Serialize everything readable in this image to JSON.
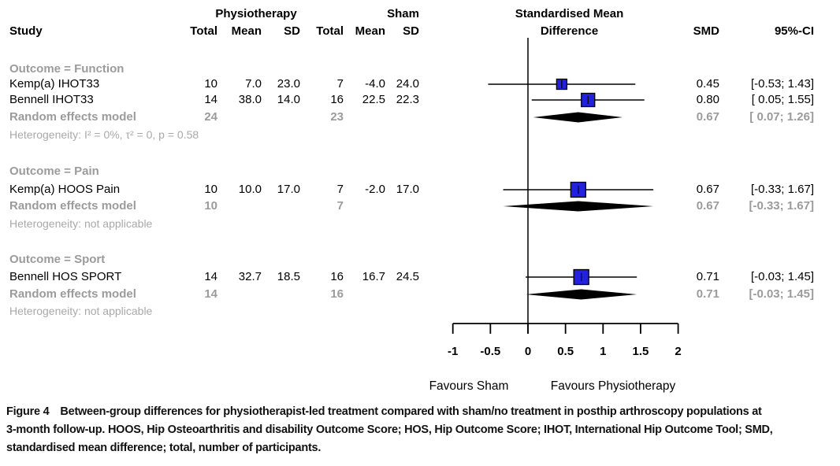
{
  "header": {
    "study": "Study",
    "group1": "Physiotherapy",
    "group2": "Sham",
    "col_total": "Total",
    "col_mean": "Mean",
    "col_sd": "SD",
    "plot_title_1": "Standardised Mean",
    "plot_title_2": "Difference",
    "smd": "SMD",
    "ci": "95%-CI"
  },
  "colors": {
    "square_blue": "#2121DF",
    "summary_black": "#000000",
    "gray_text": "#9B9B9B",
    "light_gray_text": "#A9A9A9"
  },
  "caption": {
    "tag": "Figure 4",
    "line1": "Between-group differences for physiotherapist-led treatment compared with sham/no treatment in posthip arthroscopy populations at",
    "line2": "3-month follow-up. HOOS, Hip Osteoarthritis and disability Outcome Score; HOS, Hip Outcome Score; IHOT, International Hip Outcome Tool; SMD,",
    "line3": "standardised mean difference; total, number of participants."
  },
  "chart_data": {
    "type": "forest",
    "axis": {
      "min": -1,
      "max": 2,
      "ticks": [
        -1,
        -0.5,
        0,
        0.5,
        1,
        1.5,
        2
      ],
      "tick_labels": [
        "-1",
        "-0.5",
        "0",
        "0.5",
        "1",
        "1.5",
        "2"
      ],
      "zero_line": 0,
      "favours_left": "Favours Sham",
      "favours_right": "Favours Physiotherapy"
    },
    "sections": [
      {
        "label": "Outcome = Function",
        "rows": [
          {
            "study": "Kemp(a) IHOT33",
            "total1": "10",
            "mean1": "7.0",
            "sd1": "23.0",
            "total2": "7",
            "mean2": "-4.0",
            "sd2": "24.0",
            "smd": 0.45,
            "smd_text": "0.45",
            "ci_lo": -0.53,
            "ci_hi": 1.43,
            "ci_text": "[-0.53; 1.43]",
            "marker_size": 13
          },
          {
            "study": "Bennell IHOT33",
            "total1": "14",
            "mean1": "38.0",
            "sd1": "14.0",
            "total2": "16",
            "mean2": "22.5",
            "sd2": "22.3",
            "smd": 0.8,
            "smd_text": "0.80",
            "ci_lo": 0.05,
            "ci_hi": 1.55,
            "ci_text": "[ 0.05; 1.55]",
            "marker_size": 17
          }
        ],
        "summary": {
          "study": "Random effects model",
          "total1": "24",
          "total2": "23",
          "smd": 0.67,
          "smd_text": "0.67",
          "ci_lo": 0.07,
          "ci_hi": 1.26,
          "ci_text": "[ 0.07; 1.26]"
        },
        "heterogeneity": "Heterogeneity: I² = 0%, τ² = 0, p = 0.58"
      },
      {
        "label": "Outcome = Pain",
        "rows": [
          {
            "study": "Kemp(a) HOOS Pain",
            "total1": "10",
            "mean1": "10.0",
            "sd1": "17.0",
            "total2": "7",
            "mean2": "-2.0",
            "sd2": "17.0",
            "smd": 0.67,
            "smd_text": "0.67",
            "ci_lo": -0.33,
            "ci_hi": 1.67,
            "ci_text": "[-0.33; 1.67]",
            "marker_size": 19
          }
        ],
        "summary": {
          "study": "Random effects model",
          "total1": "10",
          "total2": "7",
          "smd": 0.67,
          "smd_text": "0.67",
          "ci_lo": -0.33,
          "ci_hi": 1.67,
          "ci_text": "[-0.33; 1.67]"
        },
        "heterogeneity": "Heterogeneity: not applicable"
      },
      {
        "label": "Outcome = Sport",
        "rows": [
          {
            "study": "Bennell HOS SPORT",
            "total1": "14",
            "mean1": "32.7",
            "sd1": "18.5",
            "total2": "16",
            "mean2": "16.7",
            "sd2": "24.5",
            "smd": 0.71,
            "smd_text": "0.71",
            "ci_lo": -0.03,
            "ci_hi": 1.45,
            "ci_text": "[-0.03; 1.45]",
            "marker_size": 19
          }
        ],
        "summary": {
          "study": "Random effects model",
          "total1": "14",
          "total2": "16",
          "smd": 0.71,
          "smd_text": "0.71",
          "ci_lo": -0.03,
          "ci_hi": 1.45,
          "ci_text": "[-0.03; 1.45]"
        },
        "heterogeneity": "Heterogeneity: not applicable"
      }
    ]
  }
}
